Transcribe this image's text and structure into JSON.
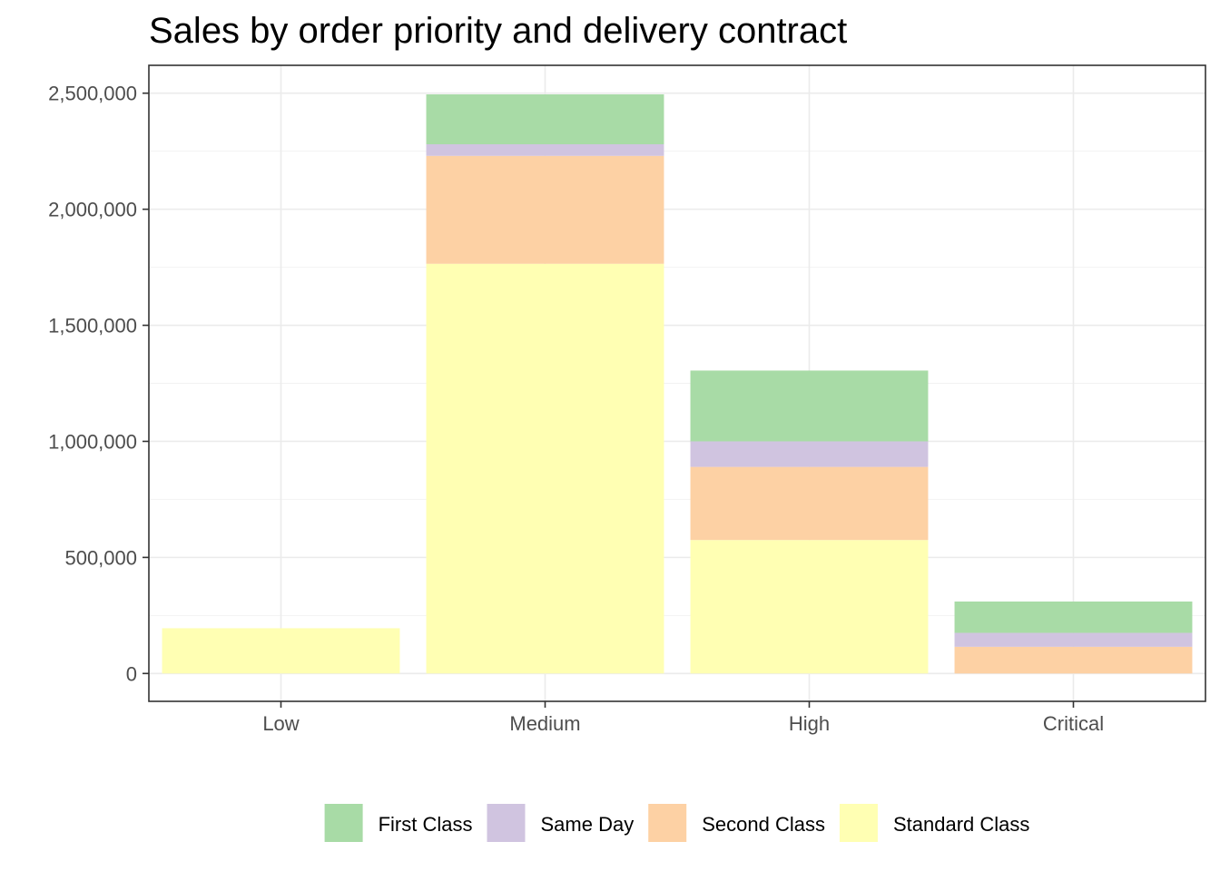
{
  "chart_data": {
    "type": "bar",
    "stacked": true,
    "title": "Sales by order priority and delivery contract",
    "xlabel": "",
    "ylabel": "",
    "categories": [
      "Low",
      "Medium",
      "High",
      "Critical"
    ],
    "ylim": [
      -120000,
      2620000
    ],
    "yticks": [
      0,
      500000,
      1000000,
      1500000,
      2000000,
      2500000
    ],
    "ytick_labels": [
      "0",
      "500,000",
      "1,000,000",
      "1,500,000",
      "2,000,000",
      "2,500,000"
    ],
    "grid": true,
    "legend_position": "bottom",
    "series": [
      {
        "name": "Standard Class",
        "color": "#ffffb3",
        "values": [
          195000,
          1765000,
          575000,
          0
        ]
      },
      {
        "name": "Second Class",
        "color": "#fdd1a4",
        "values": [
          0,
          465000,
          315000,
          115000
        ]
      },
      {
        "name": "Same Day",
        "color": "#d0c4e0",
        "values": [
          0,
          50000,
          110000,
          60000
        ]
      },
      {
        "name": "First Class",
        "color": "#a8dba6",
        "values": [
          0,
          215000,
          305000,
          135000
        ]
      }
    ],
    "legend_order": [
      "First Class",
      "Same Day",
      "Second Class",
      "Standard Class"
    ]
  }
}
